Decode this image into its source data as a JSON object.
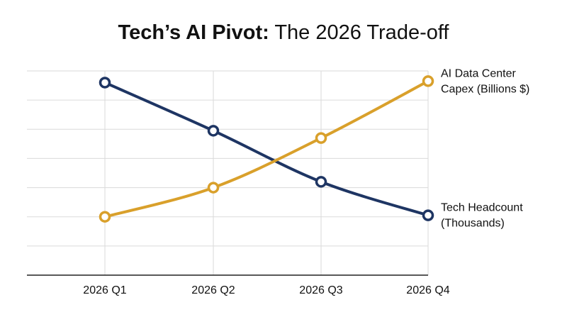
{
  "title": {
    "bold_part": "Tech’s AI Pivot:",
    "rest": " The 2026 Trade-off"
  },
  "chart_data": {
    "type": "line",
    "title": "Tech’s AI Pivot: The 2026 Trade-off",
    "categories": [
      "2026 Q1",
      "2026 Q2",
      "2026 Q3",
      "2026 Q4"
    ],
    "series": [
      {
        "name": "Tech Headcount (Thousands)",
        "label_lines": [
          "Tech Headcount",
          "(Thousands)"
        ],
        "color": "#1e3563",
        "values": [
          5.6,
          3.95,
          2.2,
          1.05
        ]
      },
      {
        "name": "AI Data Center Capex (Billions $)",
        "label_lines": [
          "AI Data Center",
          "Capex (Billions $)"
        ],
        "color": "#d9a02b",
        "values": [
          1.0,
          2.0,
          3.7,
          5.65
        ]
      }
    ],
    "ylim": [
      -1,
      6
    ],
    "grid": true,
    "y_tick_labels": false,
    "legend": "inline-right"
  }
}
